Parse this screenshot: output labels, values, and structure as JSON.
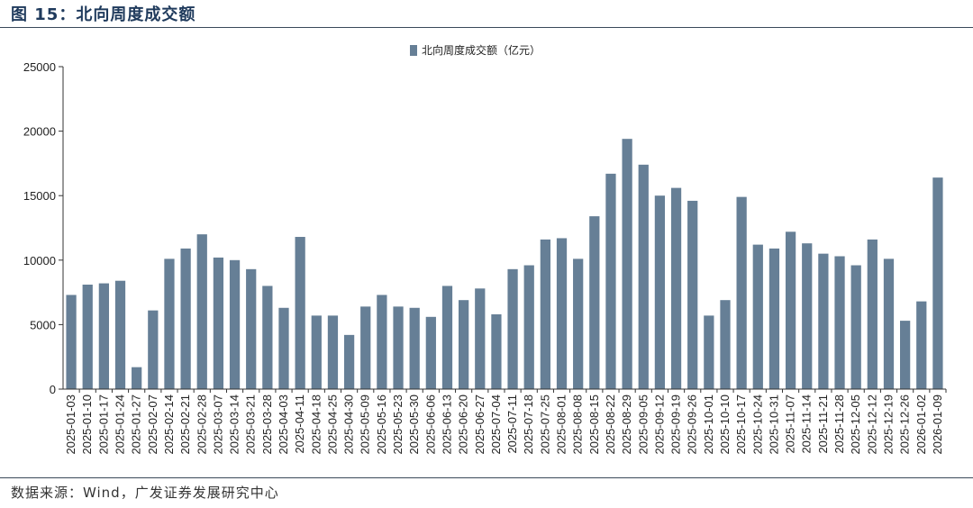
{
  "figure": {
    "title": "图 15：北向周度成交额",
    "source": "数据来源：Wind，广发证券发展研究中心"
  },
  "colors": {
    "bar": "#667f96",
    "axis": "#333333",
    "text": "#222222"
  },
  "chart_data": {
    "type": "bar",
    "title": "",
    "xlabel": "",
    "ylabel": "",
    "ylim": [
      0,
      25000
    ],
    "yticks": [
      0,
      5000,
      10000,
      15000,
      20000,
      25000
    ],
    "grid": false,
    "legend_position": "top-center",
    "series": [
      {
        "name": "北向周度成交额（亿元）"
      }
    ],
    "categories": [
      "2025-01-03",
      "2025-01-10",
      "2025-01-17",
      "2025-01-24",
      "2025-01-27",
      "2025-02-07",
      "2025-02-14",
      "2025-02-21",
      "2025-02-28",
      "2025-03-07",
      "2025-03-14",
      "2025-03-21",
      "2025-03-28",
      "2025-04-03",
      "2025-04-11",
      "2025-04-18",
      "2025-04-25",
      "2025-04-30",
      "2025-05-09",
      "2025-05-16",
      "2025-05-23",
      "2025-05-30",
      "2025-06-06",
      "2025-06-13",
      "2025-06-20",
      "2025-06-27",
      "2025-07-04",
      "2025-07-11",
      "2025-07-18",
      "2025-07-25",
      "2025-08-01",
      "2025-08-08",
      "2025-08-15",
      "2025-08-22",
      "2025-08-29",
      "2025-09-05",
      "2025-09-12",
      "2025-09-19",
      "2025-09-26",
      "2025-10-01",
      "2025-10-10",
      "2025-10-17",
      "2025-10-24",
      "2025-10-31",
      "2025-11-07",
      "2025-11-14",
      "2025-11-21",
      "2025-11-28",
      "2025-12-05",
      "2025-12-12",
      "2025-12-19",
      "2025-12-26",
      "2026-01-02",
      "2026-01-09"
    ],
    "values": [
      7300,
      8100,
      8200,
      8400,
      1700,
      6100,
      10100,
      10900,
      12000,
      10200,
      10000,
      9300,
      8000,
      6300,
      11800,
      5700,
      5700,
      4200,
      6400,
      7300,
      6400,
      6300,
      5600,
      8000,
      6900,
      7800,
      5800,
      9300,
      9600,
      11600,
      11700,
      10100,
      13400,
      16700,
      19400,
      17400,
      15000,
      15600,
      14600,
      5700,
      6900,
      14900,
      11200,
      10900,
      12200,
      11300,
      10500,
      10300,
      9600,
      11600,
      10100,
      5300,
      6800,
      16400
    ]
  }
}
